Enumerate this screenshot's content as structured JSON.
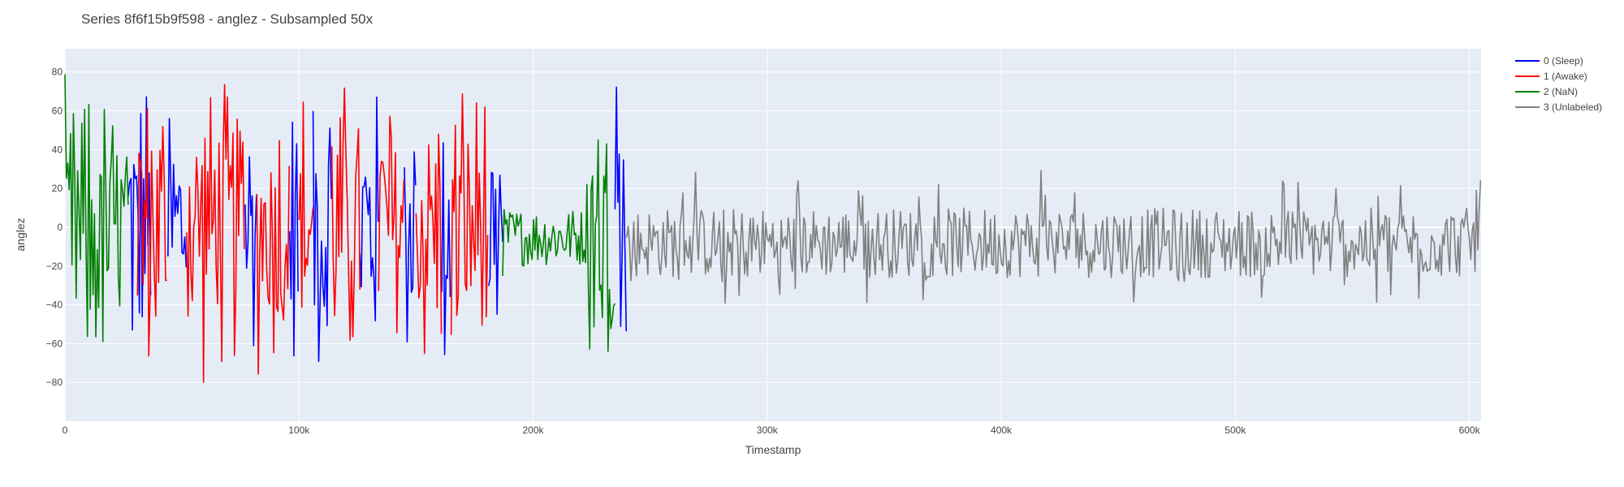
{
  "chart_data": {
    "type": "line",
    "title": "Series 8f6f15b9f598 - anglez - Subsampled 50x",
    "xlabel": "Timestamp",
    "ylabel": "anglez",
    "xlim": [
      0,
      605000
    ],
    "ylim": [
      -100,
      92
    ],
    "x_ticks": [
      0,
      100000,
      200000,
      300000,
      400000,
      500000,
      600000
    ],
    "x_tick_labels": [
      "0",
      "100k",
      "200k",
      "300k",
      "400k",
      "500k",
      "600k"
    ],
    "y_ticks": [
      -80,
      -60,
      -40,
      -20,
      0,
      20,
      40,
      60,
      80
    ],
    "y_tick_labels": [
      "−80",
      "−60",
      "−40",
      "−20",
      "0",
      "20",
      "40",
      "60",
      "80"
    ],
    "grid": true,
    "legend_position": "top-right",
    "series": [
      {
        "name": "0 (Sleep)",
        "color": "#0000ff",
        "segments": [
          [
            27000,
            37000
          ],
          [
            44000,
            52000
          ],
          [
            77000,
            82000
          ],
          [
            96000,
            100000
          ],
          [
            106000,
            114000
          ],
          [
            126000,
            134000
          ],
          [
            145000,
            150000
          ],
          [
            161000,
            165000
          ],
          [
            181000,
            187000
          ],
          [
            235000,
            240000
          ]
        ],
        "amplitude": [
          -88,
          86
        ],
        "center": 0
      },
      {
        "name": "1 (Awake)",
        "color": "#ff0000",
        "segments": [
          [
            31000,
            44000
          ],
          [
            52000,
            77000
          ],
          [
            82000,
            96000
          ],
          [
            100000,
            106000
          ],
          [
            114000,
            126000
          ],
          [
            134000,
            145000
          ],
          [
            150000,
            161000
          ],
          [
            165000,
            181000
          ]
        ],
        "amplitude": [
          -90,
          86
        ],
        "center": 0
      },
      {
        "name": "2 (NaN)",
        "color": "#008000",
        "segments": [
          [
            0,
            27000
          ],
          [
            187000,
            235000
          ]
        ],
        "amplitude": [
          -90,
          85
        ],
        "center": -5
      },
      {
        "name": "3 (Unlabeled)",
        "color": "#808080",
        "segments": [
          [
            240000,
            605000
          ]
        ],
        "amplitude": [
          -55,
          70
        ],
        "center": -8
      }
    ]
  }
}
